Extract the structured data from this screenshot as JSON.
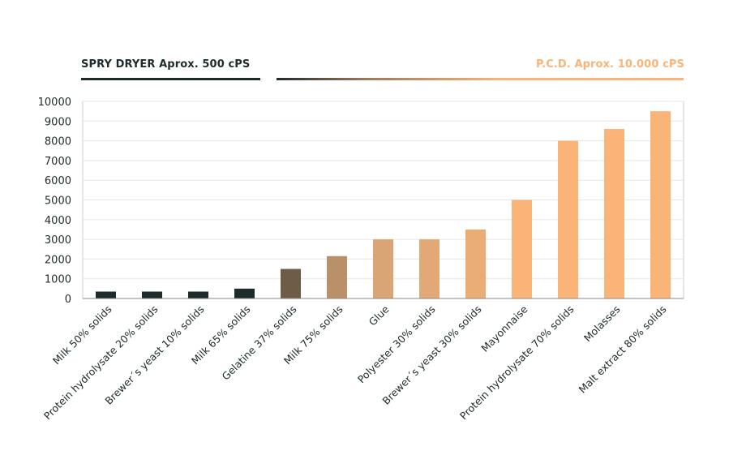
{
  "legend": {
    "left_label": "SPRY DRYER Aprox. 500 cPS",
    "right_label": "P.C.D. Aprox. 10.000 cPS"
  },
  "colors": {
    "dark": "#1e2b2b",
    "orange": "#fbb477",
    "grid": "#e6e6e6",
    "axis": "#999999",
    "text": "#1e2b2b"
  },
  "chart_data": {
    "type": "bar",
    "categories": [
      "Milk 50% solids",
      "Protein hydrolysate 20% solids",
      "Brewer´s yeast 10% solids",
      "Milk 65% solids",
      "Gelatine 37% solids",
      "Milk 75% solids",
      "Glue",
      "Polyester 30% solids",
      "Brewer´s yeast 30% solids",
      "Mayonnaise",
      "Protein hydrolysate 70% solids",
      "Molasses",
      "Malt extract 80% solids"
    ],
    "values": [
      350,
      350,
      350,
      500,
      1500,
      2150,
      3000,
      3000,
      3500,
      5000,
      8000,
      8600,
      9500
    ],
    "bar_colors": [
      "#1e2b2b",
      "#1e2b2b",
      "#1e2b2b",
      "#1e2b2b",
      "#6e5c46",
      "#ba9068",
      "#d9a574",
      "#e2a976",
      "#eaad76",
      "#fbb477",
      "#fbb477",
      "#fbb477",
      "#fbb477"
    ],
    "ylim": [
      0,
      10000
    ],
    "yticks": [
      0,
      1000,
      2000,
      3000,
      4000,
      5000,
      6000,
      7000,
      8000,
      9000,
      10000
    ],
    "title": "",
    "xlabel": "",
    "ylabel": "",
    "grid": true
  }
}
